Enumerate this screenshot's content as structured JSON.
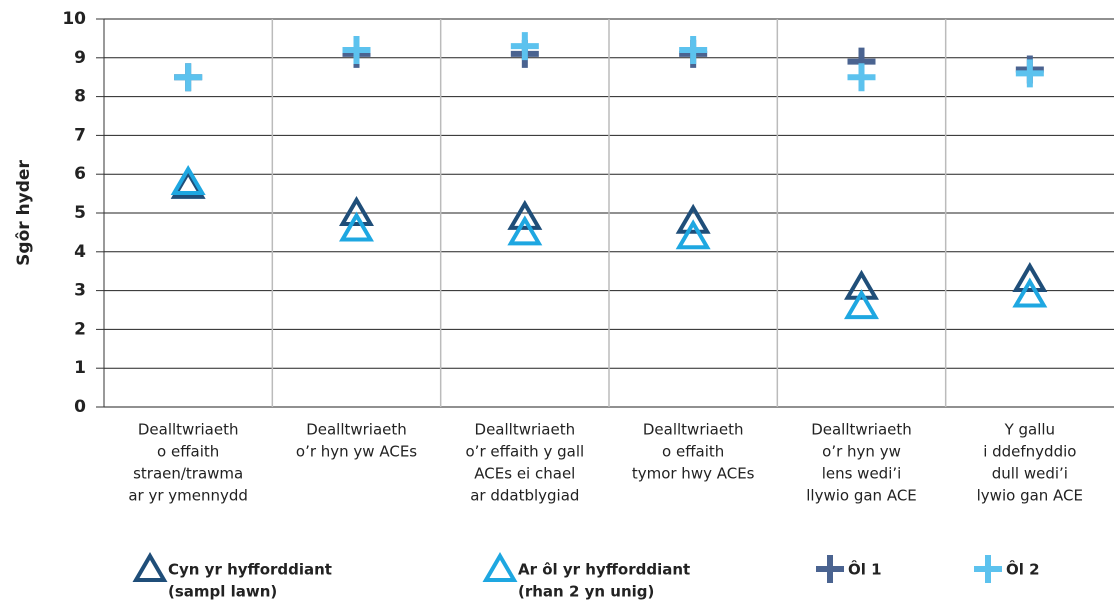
{
  "chart_data": {
    "type": "scatter",
    "y_label": "Sgôr hyder",
    "categories": [
      [
        "Dealltwriaeth",
        "o effaith",
        "straen/trawma",
        "ar yr ymennydd"
      ],
      [
        "Dealltwriaeth",
        "o’r hyn yw ACEs"
      ],
      [
        "Dealltwriaeth",
        "o’r effaith y gall",
        "ACEs ei chael",
        "ar ddatblygiad"
      ],
      [
        "Dealltwriaeth",
        "o effaith",
        "tymor hwy ACEs"
      ],
      [
        "Dealltwriaeth",
        "o’r hyn yw",
        "lens wedi’i",
        "llywio gan ACE"
      ],
      [
        "Y gallu",
        "i ddefnyddio",
        "dull wedi’i",
        "lywio gan ACE"
      ]
    ],
    "series": [
      {
        "name": [
          "Cyn yr hyfforddiant",
          "(sampl lawn)"
        ],
        "marker": "triangle",
        "color": "#1f4e79",
        "values": [
          5.7,
          5.0,
          4.9,
          4.8,
          3.1,
          3.3
        ]
      },
      {
        "name": [
          "Ar ôl yr hyfforddiant",
          "(rhan 2 yn unig)"
        ],
        "marker": "triangle",
        "color": "#1ea7e1",
        "values": [
          5.8,
          4.6,
          4.5,
          4.4,
          2.6,
          2.9
        ]
      },
      {
        "name": [
          "Ôl 1"
        ],
        "marker": "plus",
        "color": "#4a6390",
        "values": [
          8.5,
          9.1,
          9.1,
          9.1,
          8.9,
          8.7
        ]
      },
      {
        "name": [
          "Ôl 2"
        ],
        "marker": "plus",
        "color": "#5cc2ee",
        "values": [
          8.5,
          9.2,
          9.3,
          9.2,
          8.5,
          8.6
        ]
      }
    ],
    "ylim": [
      0,
      10
    ],
    "yticks": [
      0,
      1,
      2,
      3,
      4,
      5,
      6,
      7,
      8,
      9,
      10
    ],
    "grid": true
  }
}
